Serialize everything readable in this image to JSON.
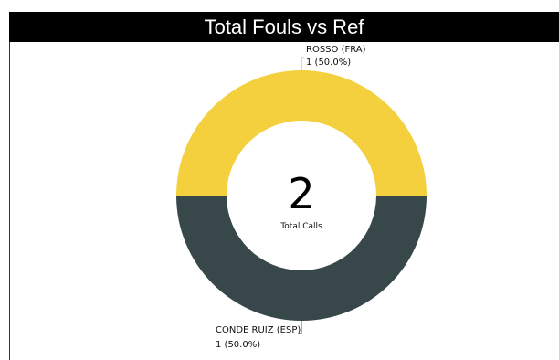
{
  "chart_data": {
    "type": "pie",
    "title": "Total Fouls vs Ref",
    "categories": [
      "ROSSO (FRA)",
      "CONDE RUIZ (ESP)"
    ],
    "values": [
      1,
      1
    ],
    "labels": [
      "1 (50.0%)",
      "1 (50.0%)"
    ],
    "colors": [
      "#f4d03f",
      "#37474a"
    ],
    "center": {
      "value": "2",
      "caption": "Total Calls"
    },
    "legend": "none"
  }
}
